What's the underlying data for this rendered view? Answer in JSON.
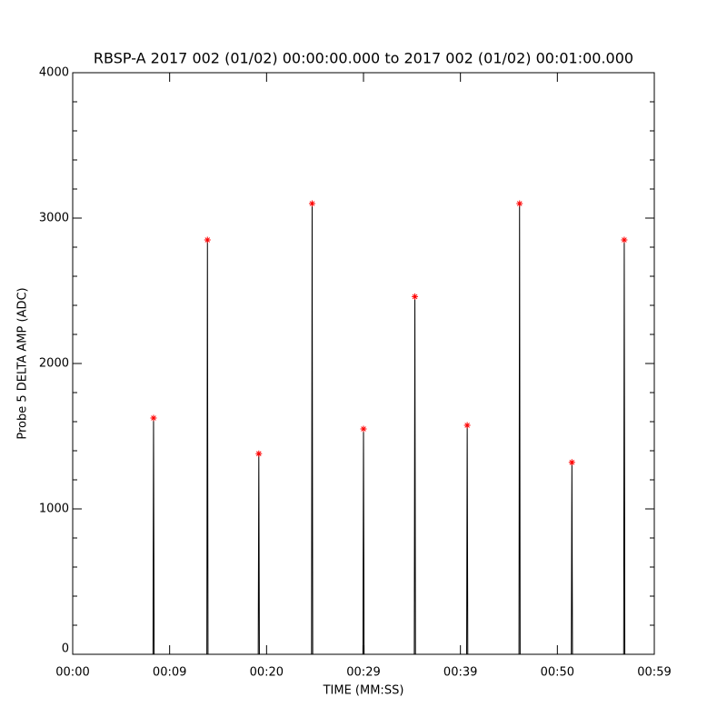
{
  "chart_data": {
    "type": "line",
    "title": "RBSP-A 2017 002 (01/02) 00:00:00.000 to 2017 002 (01/02) 00:01:00.000",
    "xlabel": "TIME (MM:SS)",
    "ylabel": "Probe 5 DELTA AMP (ADC)",
    "xlim": [
      0,
      60
    ],
    "xticks": [
      {
        "value": 0,
        "label": "00:00"
      },
      {
        "value": 10,
        "label": "00:09"
      },
      {
        "value": 20,
        "label": "00:20"
      },
      {
        "value": 30,
        "label": "00:29"
      },
      {
        "value": 40,
        "label": "00:39"
      },
      {
        "value": 50,
        "label": "00:50"
      },
      {
        "value": 60,
        "label": "00:59"
      }
    ],
    "ylim": [
      0,
      4000
    ],
    "yticks": [
      0,
      1000,
      2000,
      3000,
      4000
    ],
    "series": [
      {
        "style": "line",
        "color": "#000000",
        "x": [
          8.28,
          8.34,
          8.4,
          null,
          13.84,
          13.9,
          13.96,
          null,
          19.14,
          19.2,
          19.26,
          null,
          24.64,
          24.7,
          24.76,
          null,
          29.94,
          30.0,
          30.06,
          null,
          35.24,
          35.3,
          35.36,
          null,
          40.64,
          40.7,
          40.76,
          null,
          46.04,
          46.1,
          46.16,
          null,
          51.44,
          51.5,
          51.56,
          null,
          56.84,
          56.9,
          56.96
        ],
        "values": [
          0,
          1625,
          0,
          null,
          0,
          2850,
          0,
          null,
          0,
          1380,
          0,
          null,
          0,
          3100,
          0,
          null,
          0,
          1550,
          0,
          null,
          0,
          2460,
          0,
          null,
          0,
          1575,
          0,
          null,
          0,
          3100,
          0,
          null,
          0,
          1320,
          0,
          null,
          0,
          2850,
          0
        ]
      },
      {
        "style": "asterisk",
        "color": "#ff0000",
        "x": [
          8.34,
          13.9,
          19.2,
          24.7,
          30.0,
          35.3,
          40.7,
          46.1,
          51.5,
          56.9
        ],
        "values": [
          1625,
          2850,
          1380,
          3100,
          1550,
          2460,
          1575,
          3100,
          1320,
          2850
        ]
      }
    ]
  }
}
